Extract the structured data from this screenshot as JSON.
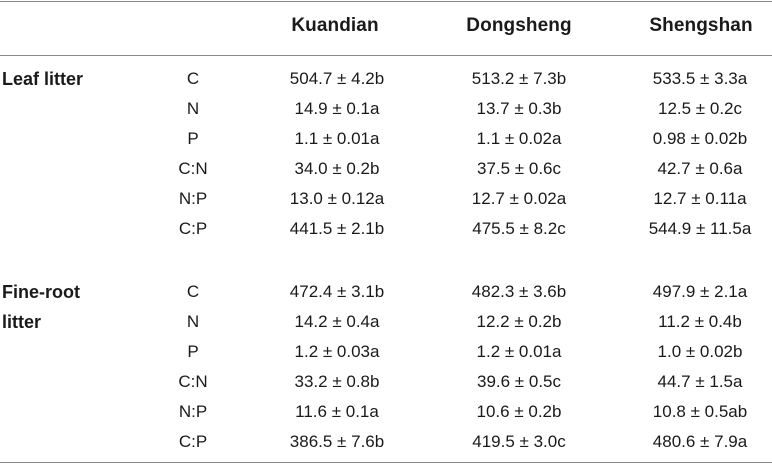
{
  "header": {
    "columns": [
      "Kuandian",
      "Dongsheng",
      "Shengshan"
    ]
  },
  "sections": [
    {
      "label": "Leaf litter",
      "rows": [
        {
          "var": "C",
          "values": [
            "504.7 ± 4.2b",
            "513.2 ± 7.3b",
            "533.5 ± 3.3a"
          ]
        },
        {
          "var": "N",
          "values": [
            "14.9 ± 0.1a",
            "13.7 ± 0.3b",
            "12.5 ± 0.2c"
          ]
        },
        {
          "var": "P",
          "values": [
            "1.1 ± 0.01a",
            "1.1 ± 0.02a",
            "0.98 ± 0.02b"
          ]
        },
        {
          "var": "C:N",
          "values": [
            "34.0 ± 0.2b",
            "37.5 ± 0.6c",
            "42.7 ± 0.6a"
          ]
        },
        {
          "var": "N:P",
          "values": [
            "13.0 ± 0.12a",
            "12.7 ± 0.02a",
            "12.7 ± 0.11a"
          ]
        },
        {
          "var": "C:P",
          "values": [
            "441.5 ± 2.1b",
            "475.5 ± 8.2c",
            "544.9 ± 11.5a"
          ]
        }
      ]
    },
    {
      "label_line1": "Fine-root",
      "label_line2": "litter",
      "rows": [
        {
          "var": "C",
          "values": [
            "472.4 ± 3.1b",
            "482.3 ± 3.6b",
            "497.9 ± 2.1a"
          ]
        },
        {
          "var": "N",
          "values": [
            "14.2 ± 0.4a",
            "12.2 ± 0.2b",
            "11.2 ± 0.4b"
          ]
        },
        {
          "var": "P",
          "values": [
            "1.2 ± 0.03a",
            "1.2 ± 0.01a",
            "1.0 ± 0.02b"
          ]
        },
        {
          "var": "C:N",
          "values": [
            "33.2 ± 0.8b",
            "39.6 ± 0.5c",
            "44.7 ± 1.5a"
          ]
        },
        {
          "var": "N:P",
          "values": [
            "11.6 ± 0.1a",
            "10.6 ± 0.2b",
            "10.8 ± 0.5ab"
          ]
        },
        {
          "var": "C:P",
          "values": [
            "386.5 ± 7.6b",
            "419.5 ± 3.0c",
            "480.6 ± 7.9a"
          ]
        }
      ]
    }
  ]
}
